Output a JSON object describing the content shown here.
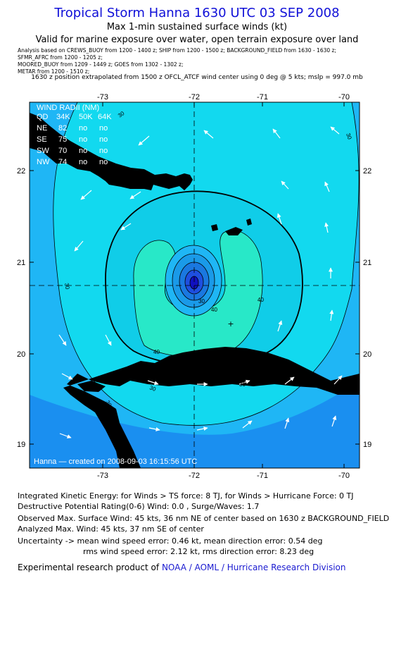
{
  "header": {
    "title": "Tropical Storm Hanna 1630 UTC 03 SEP 2008",
    "subtitle1": "Max 1-min sustained surface winds (kt)",
    "subtitle2": "Valid for marine exposure over water, open terrain exposure over land",
    "analysis_line1": "Analysis based on  CREWS_BUOY from 1200 - 1400 z;  SHIP from 1200 - 1500 z;  BACKGROUND_FIELD from 1630 - 1630 z;",
    "analysis_line2": "SFMR_AFRC from 1200 - 1205 z;",
    "analysis_line3": "MOORED_BUOY from 1209 - 1449 z;  GOES from 1302 - 1302 z;",
    "analysis_line4": "METAR from 1200 - 1510 z;",
    "position_note": "1630 z position extrapolated from 1500 z OFCL_ATCF wind center using 0 deg @ 5 kts; mslp = 997.0 mb"
  },
  "map": {
    "lon_ticks": [
      "-73",
      "-72",
      "-71",
      "-70"
    ],
    "lat_ticks": [
      "22",
      "21",
      "20",
      "19"
    ],
    "contour_labels": [
      "30",
      "30",
      "30",
      "30",
      "30",
      "40",
      "40",
      "40",
      "30",
      "30"
    ],
    "wind_radii": {
      "title": "WIND RADII (NM)",
      "header": [
        "QD",
        "34K",
        "50K",
        "64K"
      ],
      "rows": [
        [
          "NE",
          "82",
          "no",
          "no"
        ],
        [
          "SE",
          "75",
          "no",
          "no"
        ],
        [
          "SW",
          "70",
          "no",
          "no"
        ],
        [
          "NW",
          "74",
          "no",
          "no"
        ]
      ]
    },
    "footer": "Hanna — created on 2008-09-03 16:15:56 UTC",
    "colors": {
      "water_deep": "#1a8ff0",
      "water_mid": "#1fb6f5",
      "ts_zone": "#12d9ef",
      "band_40": "#28e8c8",
      "core": "#1e4fe0",
      "land": "#000000"
    }
  },
  "info": {
    "ike": "Integrated Kinetic Energy:  for Winds > TS force: 8 TJ,  for Winds > Hurricane Force: 0 TJ",
    "dpr": "Destructive Potential Rating(0-6)   Wind: 0.0 , Surge/Waves: 1.7",
    "observed": "Observed Max. Surface Wind: 45 kts, 36 nm NE of center based on 1630 z BACKGROUND_FIELD",
    "analyzed": "Analyzed Max. Wind: 45 kts, 37 nm SE of center",
    "uncert1": "Uncertainty -> mean wind speed error: 0.46 kt,   mean direction error: 0.54 deg",
    "uncert2": "rms wind speed error: 2.12 kt,   rms direction error: 8.23 deg",
    "credit_prefix": "Experimental research product of",
    "credit_org": "NOAA / AOML / Hurricane Research Division"
  }
}
